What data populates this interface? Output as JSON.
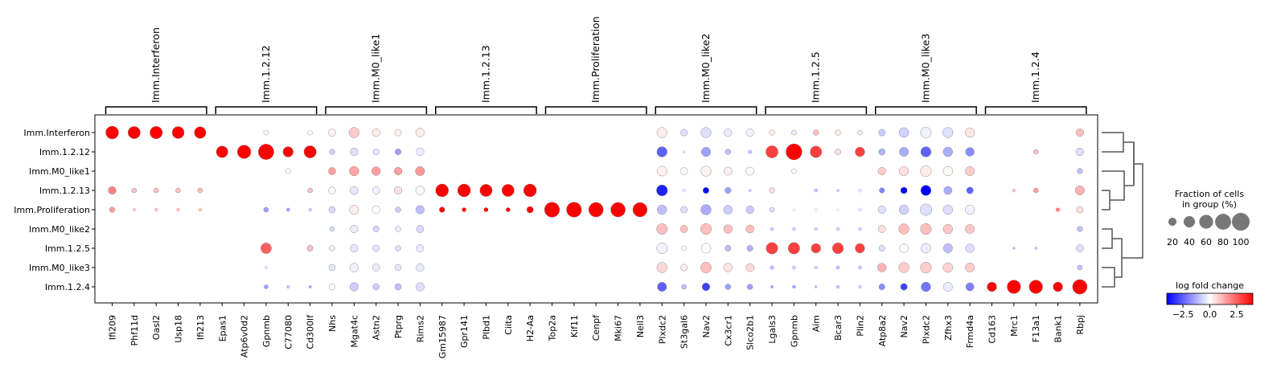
{
  "chart_data": {
    "type": "dotplot",
    "groups": [
      "Imm.Interferon",
      "Imm.1.2.12",
      "Imm.M0_like1",
      "Imm.1.2.13",
      "Imm.Proliferation",
      "Imm.M0_like2",
      "Imm.1.2.5",
      "Imm.M0_like3",
      "Imm.1.2.4"
    ],
    "gene_groups": [
      {
        "name": "Imm.Interferon",
        "genes": [
          "Ifi209",
          "Phf11d",
          "Oasl2",
          "Usp18",
          "Ifi213"
        ]
      },
      {
        "name": "Imm.1.2.12",
        "genes": [
          "Epas1",
          "Atp6v0d2",
          "Gpnmb",
          "C77080",
          "Cd300lf"
        ]
      },
      {
        "name": "Imm.M0_like1",
        "genes": [
          "Nhs",
          "Mgat4c",
          "Astn2",
          "Ptprg",
          "Rims2"
        ]
      },
      {
        "name": "Imm.1.2.13",
        "genes": [
          "Gm15987",
          "Gpr141",
          "Plbd1",
          "Ciita",
          "H2-Aa"
        ]
      },
      {
        "name": "Imm.Proliferation",
        "genes": [
          "Top2a",
          "Kif11",
          "Cenpf",
          "Mki67",
          "Neil3"
        ]
      },
      {
        "name": "Imm.M0_like2",
        "genes": [
          "Plxdc2",
          "St3gal6",
          "Nav2",
          "Cx3cr1",
          "Slco2b1"
        ]
      },
      {
        "name": "Imm.1.2.5",
        "genes": [
          "Lgals3",
          "Gpnmb",
          "Aim",
          "Bcar3",
          "Plin2"
        ]
      },
      {
        "name": "Imm.M0_like3",
        "genes": [
          "Atp8a2",
          "Nav2",
          "Plxdc2",
          "Zfhx3",
          "Frmd4a"
        ]
      },
      {
        "name": "Imm.1.2.4",
        "genes": [
          "Cd163",
          "Mrc1",
          "F13a1",
          "Bank1",
          "Rbpj"
        ]
      }
    ],
    "fraction": [
      [
        55,
        50,
        52,
        48,
        45,
        5,
        5,
        8,
        5,
        8,
        18,
        35,
        20,
        15,
        25,
        0,
        5,
        0,
        0,
        0,
        0,
        0,
        0,
        0,
        0,
        35,
        15,
        35,
        20,
        20,
        10,
        8,
        10,
        10,
        8,
        15,
        32,
        38,
        35,
        30,
        0,
        3,
        3,
        3,
        20
      ],
      [
        4,
        0,
        3,
        3,
        4,
        45,
        60,
        80,
        35,
        50,
        10,
        20,
        12,
        12,
        20,
        3,
        2,
        3,
        3,
        2,
        0,
        0,
        0,
        0,
        0,
        35,
        3,
        28,
        10,
        6,
        50,
        85,
        45,
        12,
        30,
        14,
        27,
        35,
        30,
        25,
        0,
        5,
        8,
        3,
        20
      ],
      [
        3,
        3,
        3,
        3,
        3,
        0,
        5,
        7,
        8,
        6,
        18,
        30,
        25,
        20,
        28,
        0,
        0,
        0,
        0,
        0,
        3,
        0,
        3,
        0,
        3,
        32,
        18,
        35,
        22,
        22,
        6,
        8,
        6,
        7,
        6,
        20,
        30,
        40,
        30,
        28,
        3,
        0,
        0,
        0,
        10
      ],
      [
        20,
        8,
        8,
        8,
        8,
        0,
        0,
        3,
        0,
        8,
        16,
        22,
        18,
        20,
        26,
        55,
        55,
        50,
        50,
        55,
        0,
        0,
        0,
        0,
        0,
        40,
        5,
        12,
        12,
        3,
        10,
        2,
        5,
        3,
        6,
        9,
        14,
        35,
        22,
        15,
        0,
        5,
        8,
        0,
        28
      ],
      [
        10,
        4,
        5,
        5,
        5,
        0,
        0,
        8,
        5,
        4,
        14,
        28,
        20,
        10,
        24,
        10,
        6,
        6,
        6,
        14,
        75,
        75,
        70,
        70,
        68,
        30,
        15,
        35,
        25,
        20,
        8,
        5,
        6,
        4,
        6,
        20,
        30,
        45,
        30,
        30,
        3,
        5,
        5,
        6,
        15
      ],
      [
        3,
        3,
        3,
        3,
        3,
        0,
        0,
        0,
        0,
        0,
        8,
        20,
        12,
        10,
        18,
        0,
        0,
        0,
        0,
        0,
        0,
        0,
        0,
        0,
        0,
        38,
        18,
        40,
        25,
        22,
        6,
        6,
        6,
        6,
        6,
        18,
        35,
        40,
        30,
        28,
        0,
        0,
        0,
        0,
        10
      ],
      [
        3,
        3,
        3,
        3,
        3,
        5,
        6,
        38,
        6,
        12,
        10,
        20,
        15,
        10,
        18,
        3,
        3,
        3,
        3,
        3,
        0,
        0,
        0,
        0,
        0,
        38,
        8,
        32,
        12,
        12,
        45,
        45,
        30,
        40,
        30,
        12,
        26,
        32,
        28,
        25,
        3,
        3,
        3,
        3,
        18
      ],
      [
        3,
        3,
        3,
        3,
        3,
        3,
        3,
        5,
        3,
        4,
        14,
        25,
        18,
        14,
        20,
        0,
        0,
        0,
        0,
        0,
        0,
        0,
        0,
        0,
        0,
        35,
        15,
        38,
        25,
        22,
        7,
        6,
        5,
        6,
        5,
        25,
        35,
        40,
        32,
        28,
        0,
        0,
        0,
        0,
        8
      ],
      [
        4,
        4,
        6,
        4,
        6,
        3,
        4,
        7,
        4,
        3,
        12,
        24,
        14,
        14,
        24,
        3,
        0,
        3,
        3,
        5,
        0,
        3,
        0,
        3,
        0,
        28,
        8,
        20,
        10,
        10,
        3,
        4,
        3,
        5,
        5,
        12,
        15,
        30,
        28,
        22,
        30,
        60,
        60,
        30,
        70
      ]
    ],
    "logfc": [
      [
        4.5,
        4.5,
        4.5,
        4.5,
        4.5,
        0,
        0,
        0,
        0,
        0,
        0.2,
        0.8,
        0.3,
        0.2,
        0.3,
        0,
        0,
        0,
        0,
        0,
        0,
        0,
        0,
        0,
        0,
        0.3,
        -0.5,
        -0.5,
        -0.3,
        -0.2,
        0.3,
        -0.3,
        1.0,
        0.3,
        0.3,
        -0.8,
        -0.7,
        -0.2,
        -0.5,
        0.4,
        0,
        0,
        0,
        0,
        1.0
      ],
      [
        0,
        0,
        0,
        0,
        0,
        4.5,
        4.5,
        4.5,
        4.5,
        4.5,
        -0.8,
        -0.5,
        -0.4,
        -1.5,
        -0.3,
        0,
        0,
        0,
        0,
        0,
        0,
        0,
        0,
        0,
        0,
        -2.5,
        -0.6,
        -1.5,
        -1.0,
        -1.0,
        3.0,
        4.5,
        3.0,
        0.5,
        3.0,
        -1.2,
        -1.3,
        -2.5,
        -1.3,
        -1.8,
        0,
        0,
        1.0,
        0,
        -0.5
      ],
      [
        0,
        0,
        0,
        0,
        0,
        0,
        0,
        0,
        0,
        0,
        1.5,
        1.4,
        1.5,
        1.5,
        1.6,
        0,
        0,
        0,
        0,
        0,
        0,
        0,
        0,
        0,
        0,
        0.2,
        0.1,
        0.2,
        0.2,
        0.1,
        0,
        0,
        0,
        0,
        0,
        0.8,
        0.5,
        0.3,
        0.1,
        0.8,
        0,
        0,
        0,
        0,
        -1.0
      ],
      [
        2.0,
        1.0,
        1.0,
        1.0,
        1.0,
        0,
        0,
        0,
        0,
        1.0,
        0.1,
        -0.4,
        -0.2,
        0.5,
        -0.1,
        4.5,
        4.5,
        4.5,
        4.5,
        4.5,
        0,
        0,
        0,
        0,
        0,
        -3.5,
        -0.5,
        -4.0,
        -1.5,
        -1.0,
        0.5,
        0,
        -1.0,
        -1.0,
        -0.5,
        -2.0,
        -4.0,
        -4.0,
        -1.3,
        -2.5,
        0,
        1.0,
        1.5,
        0,
        1.2
      ],
      [
        1.5,
        1.0,
        1.0,
        1.0,
        1.0,
        0,
        0,
        -1.5,
        -1.5,
        -1.0,
        -0.6,
        0.3,
        0,
        -0.8,
        -1.0,
        4.5,
        4.5,
        4.5,
        4.5,
        4.5,
        4.5,
        4.5,
        4.5,
        4.5,
        4.5,
        -1.0,
        -0.5,
        -1.3,
        -0.8,
        -0.8,
        -0.5,
        -0.3,
        -0.3,
        -0.3,
        -0.5,
        -0.5,
        -0.7,
        -0.5,
        -0.5,
        -0.2,
        0,
        0,
        0,
        2.0,
        0.5
      ],
      [
        0,
        0,
        0,
        0,
        0,
        0,
        0,
        0,
        0,
        0,
        -0.6,
        -0.3,
        -0.6,
        -0.3,
        -0.6,
        0,
        0,
        0,
        0,
        0,
        0,
        0,
        0,
        0,
        0,
        1.0,
        1.0,
        1.0,
        1.0,
        1.0,
        -0.8,
        -0.7,
        -0.7,
        -0.7,
        -0.7,
        0.5,
        1.0,
        1.0,
        0.9,
        0.9,
        0,
        0,
        0,
        0,
        -1.0
      ],
      [
        0,
        0,
        0,
        0,
        0,
        0,
        0,
        2.5,
        0,
        1.0,
        -0.3,
        -0.4,
        -0.4,
        -0.5,
        -0.3,
        0,
        0,
        0,
        0,
        0,
        0,
        0,
        0,
        0,
        0,
        -0.2,
        0,
        0,
        -1.0,
        -1.2,
        3.0,
        3.0,
        3.0,
        3.0,
        3.0,
        -0.5,
        -0.1,
        -0.3,
        -1.0,
        -0.5,
        0,
        -1.0,
        -1.0,
        0,
        -0.5
      ],
      [
        0,
        0,
        0,
        0,
        0,
        0,
        0,
        -0.5,
        0,
        0,
        -0.4,
        -0.2,
        -0.3,
        -0.4,
        -0.3,
        0,
        0,
        0,
        0,
        0,
        0,
        0,
        0,
        0,
        0,
        0.6,
        0.3,
        1.0,
        0.4,
        0.6,
        -1.0,
        -0.8,
        -0.8,
        -1.0,
        -1.0,
        1.2,
        0.8,
        0.8,
        0.7,
        0.8,
        0,
        0,
        0,
        0,
        -1.0
      ],
      [
        0,
        0,
        0,
        0,
        0,
        0,
        0,
        -1.5,
        -1.0,
        -1.5,
        -0.1,
        -0.8,
        -0.8,
        -1.0,
        -0.5,
        0,
        0,
        0,
        0,
        0,
        0,
        0,
        0,
        0,
        0,
        -2.5,
        -1.0,
        -3.0,
        -1.5,
        -1.5,
        -1.5,
        -1.5,
        -1.0,
        -1.0,
        -0.8,
        -1.8,
        -3.0,
        -2.2,
        -0.3,
        -2.0,
        4.5,
        4.5,
        4.5,
        4.5,
        4.5
      ]
    ],
    "size_legend": {
      "title": "Fraction of cells\nin group (%)",
      "ticks": [
        "20",
        "40",
        "60",
        "80",
        "100"
      ]
    },
    "color_legend": {
      "title": "log fold change",
      "ticks": [
        "-2.5",
        "0.0",
        "2.5"
      ],
      "range": [
        -4,
        4
      ]
    },
    "dendrogram_order": [
      "Imm.Interferon",
      "Imm.1.2.12",
      "Imm.M0_like1",
      "Imm.1.2.13",
      "Imm.Proliferation",
      "Imm.M0_like2",
      "Imm.1.2.5",
      "Imm.M0_like3",
      "Imm.1.2.4"
    ]
  }
}
